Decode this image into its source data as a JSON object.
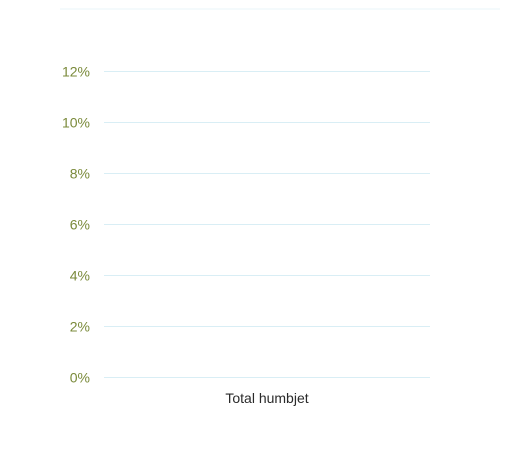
{
  "chart_data": {
    "type": "bar",
    "title": "",
    "xlabel": "",
    "ylabel": "",
    "categories": [
      "Total humbjet"
    ],
    "series": [
      {
        "values": [
          0
        ]
      }
    ],
    "ylim": [
      0,
      0.12
    ],
    "yticks": [
      0,
      0.02,
      0.04,
      0.06,
      0.08,
      0.1,
      0.12
    ],
    "ytick_labels": [
      "0%",
      "2%",
      "4%",
      "6%",
      "8%",
      "10%",
      "12%"
    ],
    "grid": true,
    "legend": "none",
    "colors": {
      "tick_label": "#7a8a3a",
      "category_label": "#2a2a2a",
      "grid": "#d9eef5"
    }
  }
}
